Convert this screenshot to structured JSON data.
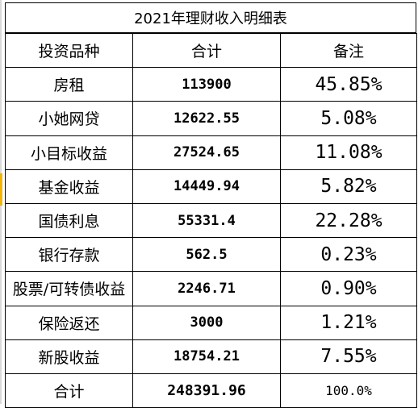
{
  "title": "2021年理财收入明细表",
  "headers": {
    "name": "投资品种",
    "total": "合计",
    "note": "备注"
  },
  "rows": [
    {
      "name": "房租",
      "total": "113900",
      "note": "45.85%"
    },
    {
      "name": "小她网贷",
      "total": "12622.55",
      "note": "5.08%"
    },
    {
      "name": "小目标收益",
      "total": "27524.65",
      "note": "11.08%"
    },
    {
      "name": "基金收益",
      "total": "14449.94",
      "note": "5.82%"
    },
    {
      "name": "国债利息",
      "total": "55331.4",
      "note": "22.28%"
    },
    {
      "name": "银行存款",
      "total": "562.5",
      "note": "0.23%"
    },
    {
      "name": "股票/可转债收益",
      "total": "2246.71",
      "note": "0.90%"
    },
    {
      "name": "保险返还",
      "total": "3000",
      "note": "1.21%"
    },
    {
      "name": "新股收益",
      "total": "18754.21",
      "note": "7.55%"
    }
  ],
  "footer": {
    "name": "合计",
    "total": "248391.96",
    "note": "100.0%"
  },
  "colors": {
    "row_marker": "#f5b400",
    "border": "#000000"
  }
}
